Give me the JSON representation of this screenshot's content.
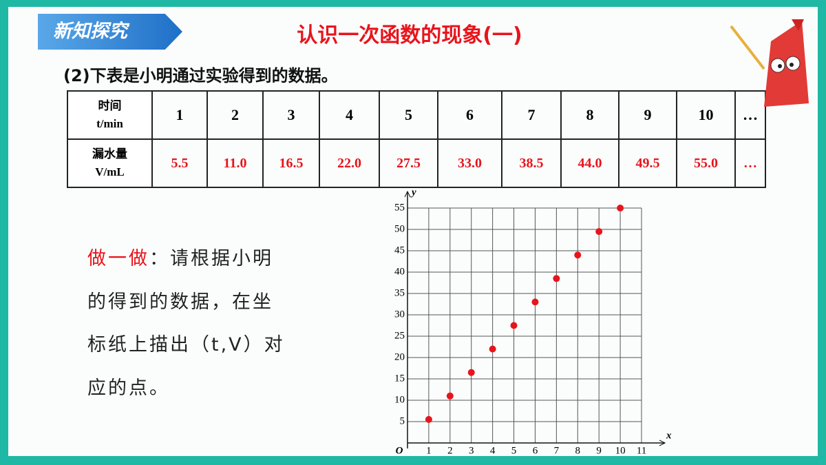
{
  "header": {
    "badge": "新知探究",
    "title": "认识一次函数的现象(一)",
    "question": "(2)下表是小明通过实验得到的数据。"
  },
  "table": {
    "rows": [
      {
        "label": [
          "时间",
          "t/min"
        ],
        "cells": [
          "1",
          "2",
          "3",
          "4",
          "5",
          "6",
          "7",
          "8",
          "9",
          "10",
          "…"
        ]
      },
      {
        "label": [
          "漏水量",
          "V/mL"
        ],
        "cells": [
          "5.5",
          "11.0",
          "16.5",
          "22.0",
          "27.5",
          "33.0",
          "38.5",
          "44.0",
          "49.5",
          "55.0",
          "…"
        ]
      }
    ]
  },
  "activity": {
    "label": "做一做",
    "lines": [
      "：请根据小明",
      "的得到的数据，在坐",
      "标纸上描出（t,V）对",
      "应的点。"
    ]
  },
  "chart_data": {
    "type": "scatter",
    "x_label": "x",
    "y_label": "y",
    "origin_label": "O",
    "x": [
      1,
      2,
      3,
      4,
      5,
      6,
      7,
      8,
      9,
      10
    ],
    "series": [
      {
        "color": "#e8141b",
        "values": [
          5.5,
          11.0,
          16.5,
          22.0,
          27.5,
          33.0,
          38.5,
          44.0,
          49.5,
          55.0
        ]
      }
    ],
    "xlim": [
      0,
      11
    ],
    "ylim": [
      0,
      55
    ],
    "xticks": [
      1,
      2,
      3,
      4,
      5,
      6,
      7,
      8,
      9,
      10,
      11
    ],
    "yticks": [
      5,
      10,
      15,
      20,
      25,
      30,
      35,
      40,
      45,
      50,
      55
    ],
    "grid": true
  }
}
